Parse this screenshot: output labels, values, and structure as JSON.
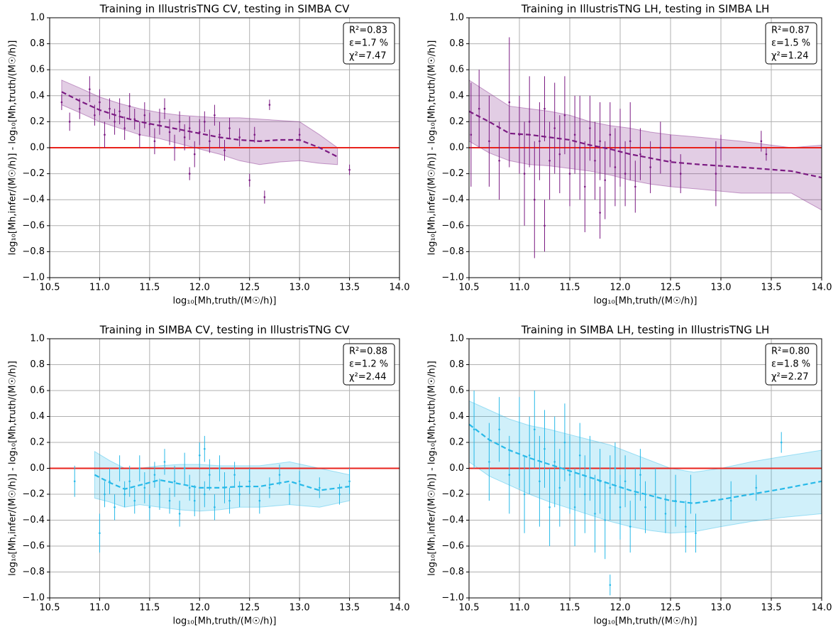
{
  "chart_data": [
    {
      "type": "errorbar",
      "title": "Training in IllustrisTNG CV, testing in SIMBA CV",
      "xlabel": "log₁₀[Mh,truth/(M☉/h)]",
      "ylabel": "log₁₀[Mh,infer/(M☉/h)] - log₁₀[Mh,truth/(M☉/h)]",
      "annotations": [
        "R²=0.83",
        "ε=1.7 %",
        "χ²=7.47"
      ],
      "color": "#7b1a82",
      "grid": true,
      "reference_line": 0,
      "reference_color": "#e8221c",
      "xlim": [
        10.5,
        14.0
      ],
      "ylim": [
        -1.0,
        1.0
      ],
      "xticks": [
        10.5,
        {
          "value": 11,
          "label": "11.0"
        },
        11.5,
        {
          "value": 12,
          "label": "12.0"
        },
        12.5,
        {
          "value": 13,
          "label": "13.0"
        },
        13.5,
        {
          "value": 14,
          "label": "14.0"
        }
      ],
      "yticks": [
        {
          "value": -1,
          "label": "−1.0"
        },
        {
          "value": -0.8,
          "label": "−0.8"
        },
        {
          "value": -0.6,
          "label": "−0.6"
        },
        {
          "value": -0.4,
          "label": "−0.4"
        },
        {
          "value": -0.2,
          "label": "−0.2"
        },
        {
          "value": 0,
          "label": "0.0"
        },
        0.2,
        0.4,
        0.6,
        0.8,
        {
          "value": 1,
          "label": "1.0"
        }
      ],
      "points": {
        "x": [
          10.62,
          10.7,
          10.8,
          10.9,
          10.95,
          11.0,
          11.05,
          11.1,
          11.15,
          11.2,
          11.25,
          11.3,
          11.35,
          11.4,
          11.45,
          11.5,
          11.55,
          11.6,
          11.65,
          11.7,
          11.75,
          11.8,
          11.85,
          11.9,
          11.95,
          12.0,
          12.05,
          12.1,
          12.15,
          12.2,
          12.25,
          12.3,
          12.4,
          12.5,
          12.55,
          12.65,
          12.7,
          13.0,
          13.5,
          11.9
        ],
        "y": [
          0.35,
          0.2,
          0.3,
          0.45,
          0.25,
          0.35,
          0.1,
          0.3,
          0.2,
          0.28,
          0.15,
          0.32,
          0.22,
          0.1,
          0.25,
          0.18,
          0.05,
          0.2,
          0.3,
          0.12,
          0.0,
          0.2,
          0.08,
          0.15,
          -0.05,
          0.12,
          0.2,
          0.05,
          0.25,
          0.1,
          -0.02,
          0.15,
          0.08,
          -0.25,
          0.1,
          -0.38,
          0.33,
          0.1,
          -0.17,
          -0.2
        ],
        "err": [
          0.06,
          0.07,
          0.08,
          0.1,
          0.08,
          0.1,
          0.1,
          0.08,
          0.1,
          0.1,
          0.09,
          0.1,
          0.08,
          0.1,
          0.1,
          0.09,
          0.1,
          0.1,
          0.08,
          0.1,
          0.1,
          0.08,
          0.1,
          0.09,
          0.1,
          0.1,
          0.08,
          0.09,
          0.08,
          0.1,
          0.08,
          0.08,
          0.07,
          0.05,
          0.06,
          0.05,
          0.04,
          0.05,
          0.04,
          0.05
        ]
      },
      "mean": {
        "x": [
          10.62,
          10.8,
          11.0,
          11.2,
          11.4,
          11.6,
          11.8,
          12.0,
          12.2,
          12.4,
          12.6,
          12.8,
          13.0,
          13.2,
          13.38
        ],
        "values": [
          0.43,
          0.36,
          0.29,
          0.24,
          0.2,
          0.17,
          0.14,
          0.11,
          0.08,
          0.06,
          0.05,
          0.06,
          0.06,
          0.0,
          -0.07
        ],
        "lower": [
          0.33,
          0.27,
          0.2,
          0.15,
          0.1,
          0.07,
          0.03,
          -0.01,
          -0.05,
          -0.1,
          -0.13,
          -0.11,
          -0.1,
          -0.12,
          -0.13
        ],
        "upper": [
          0.52,
          0.46,
          0.39,
          0.34,
          0.3,
          0.27,
          0.25,
          0.24,
          0.23,
          0.23,
          0.22,
          0.21,
          0.2,
          0.1,
          0.0
        ]
      }
    },
    {
      "type": "errorbar",
      "title": "Training in IllustrisTNG LH, testing in SIMBA LH",
      "xlabel": "log₁₀[Mh,truth/(M☉/h)]",
      "ylabel": "log₁₀[Mh,infer/(M☉/h)] - log₁₀[Mh,truth/(M☉/h)]",
      "annotations": [
        "R²=0.87",
        "ε=1.5 %",
        "χ²=1.24"
      ],
      "color": "#7b1a82",
      "grid": true,
      "reference_line": 0,
      "reference_color": "#e8221c",
      "xlim": [
        10.5,
        14.0
      ],
      "ylim": [
        -1.0,
        1.0
      ],
      "xticks": [
        10.5,
        {
          "value": 11,
          "label": "11.0"
        },
        11.5,
        {
          "value": 12,
          "label": "12.0"
        },
        12.5,
        {
          "value": 13,
          "label": "13.0"
        },
        13.5,
        {
          "value": 14,
          "label": "14.0"
        }
      ],
      "yticks": [
        {
          "value": -1,
          "label": "−1.0"
        },
        {
          "value": -0.8,
          "label": "−0.8"
        },
        {
          "value": -0.6,
          "label": "−0.6"
        },
        {
          "value": -0.4,
          "label": "−0.4"
        },
        {
          "value": -0.2,
          "label": "−0.2"
        },
        {
          "value": 0,
          "label": "0.0"
        },
        0.2,
        0.4,
        0.6,
        0.8,
        {
          "value": 1,
          "label": "1.0"
        }
      ],
      "points": {
        "x": [
          10.52,
          10.6,
          10.7,
          10.8,
          10.9,
          11.0,
          11.05,
          11.1,
          11.15,
          11.2,
          11.25,
          11.3,
          11.35,
          11.4,
          11.45,
          11.5,
          11.55,
          11.6,
          11.65,
          11.7,
          11.75,
          11.8,
          11.85,
          11.9,
          11.95,
          12.0,
          12.05,
          12.1,
          12.15,
          12.2,
          12.3,
          12.4,
          12.5,
          12.6,
          12.95,
          13.0,
          13.4,
          13.45,
          11.8,
          11.25
        ],
        "y": [
          0.1,
          0.3,
          0.05,
          -0.1,
          0.35,
          0.1,
          -0.2,
          0.2,
          -0.4,
          0.05,
          0.3,
          -0.1,
          0.15,
          -0.05,
          0.25,
          -0.2,
          0.1,
          0.0,
          -0.3,
          0.15,
          -0.1,
          0.05,
          -0.25,
          0.1,
          -0.15,
          0.0,
          -0.2,
          0.05,
          -0.3,
          -0.05,
          -0.15,
          0.0,
          -0.1,
          -0.2,
          -0.2,
          0.0,
          0.05,
          -0.05,
          -0.5,
          -0.6
        ],
        "err": [
          0.4,
          0.3,
          0.35,
          0.3,
          0.5,
          0.3,
          0.4,
          0.35,
          0.45,
          0.3,
          0.25,
          0.3,
          0.35,
          0.3,
          0.3,
          0.25,
          0.3,
          0.4,
          0.35,
          0.25,
          0.3,
          0.3,
          0.3,
          0.25,
          0.3,
          0.3,
          0.25,
          0.3,
          0.2,
          0.2,
          0.2,
          0.2,
          0.2,
          0.15,
          0.25,
          0.1,
          0.08,
          0.05,
          0.2,
          0.2
        ]
      },
      "mean": {
        "x": [
          10.5,
          10.7,
          10.9,
          11.1,
          11.3,
          11.5,
          11.7,
          11.9,
          12.1,
          12.3,
          12.5,
          12.8,
          13.2,
          13.7,
          14.0
        ],
        "values": [
          0.28,
          0.2,
          0.11,
          0.1,
          0.08,
          0.06,
          0.02,
          -0.01,
          -0.05,
          -0.08,
          -0.11,
          -0.13,
          -0.15,
          -0.18,
          -0.23
        ],
        "lower": [
          0.05,
          -0.04,
          -0.1,
          -0.13,
          -0.14,
          -0.16,
          -0.18,
          -0.21,
          -0.25,
          -0.28,
          -0.3,
          -0.32,
          -0.35,
          -0.35,
          -0.48
        ],
        "upper": [
          0.52,
          0.42,
          0.32,
          0.3,
          0.28,
          0.25,
          0.2,
          0.17,
          0.15,
          0.12,
          0.1,
          0.08,
          0.05,
          0.0,
          0.02
        ]
      }
    },
    {
      "type": "errorbar",
      "title": "Training in SIMBA CV, testing in IllustrisTNG CV",
      "xlabel": "log₁₀[Mh,truth/(M☉/h)]",
      "ylabel": "log₁₀[Mh,infer/(M☉/h)] - log₁₀[Mh,truth/(M☉/h)]",
      "annotations": [
        "R²=0.88",
        "ε=1.2 %",
        "χ²=2.44"
      ],
      "color": "#27b9e8",
      "grid": true,
      "reference_line": 0,
      "reference_color": "#e8221c",
      "xlim": [
        10.5,
        14.0
      ],
      "ylim": [
        -1.0,
        1.0
      ],
      "xticks": [
        10.5,
        {
          "value": 11,
          "label": "11.0"
        },
        11.5,
        {
          "value": 12,
          "label": "12.0"
        },
        12.5,
        {
          "value": 13,
          "label": "13.0"
        },
        13.5,
        {
          "value": 14,
          "label": "14.0"
        }
      ],
      "yticks": [
        {
          "value": -1,
          "label": "−1.0"
        },
        {
          "value": -0.8,
          "label": "−0.8"
        },
        {
          "value": -0.6,
          "label": "−0.6"
        },
        {
          "value": -0.4,
          "label": "−0.4"
        },
        {
          "value": -0.2,
          "label": "−0.2"
        },
        {
          "value": 0,
          "label": "0.0"
        },
        0.2,
        0.4,
        0.6,
        0.8,
        {
          "value": 1,
          "label": "1.0"
        }
      ],
      "points": {
        "x": [
          10.75,
          11.0,
          11.05,
          11.1,
          11.15,
          11.2,
          11.25,
          11.3,
          11.35,
          11.4,
          11.45,
          11.5,
          11.55,
          11.6,
          11.65,
          11.7,
          11.75,
          11.8,
          11.85,
          11.9,
          11.95,
          12.0,
          12.05,
          12.1,
          12.15,
          12.2,
          12.25,
          12.3,
          12.35,
          12.4,
          12.5,
          12.6,
          12.7,
          12.8,
          12.9,
          13.0,
          13.2,
          13.4,
          13.5,
          12.05
        ],
        "y": [
          -0.1,
          -0.5,
          -0.2,
          -0.1,
          -0.3,
          0.0,
          -0.2,
          -0.1,
          -0.25,
          0.0,
          -0.15,
          -0.3,
          -0.05,
          -0.2,
          0.05,
          -0.25,
          -0.1,
          -0.35,
          0.0,
          -0.15,
          -0.25,
          0.1,
          -0.2,
          -0.05,
          -0.3,
          0.0,
          -0.15,
          -0.25,
          -0.05,
          -0.2,
          -0.1,
          -0.25,
          -0.15,
          -0.05,
          -0.2,
          -0.1,
          -0.15,
          -0.2,
          -0.1,
          0.15
        ],
        "err": [
          0.12,
          0.15,
          0.1,
          0.1,
          0.1,
          0.1,
          0.1,
          0.12,
          0.1,
          0.1,
          0.12,
          0.1,
          0.1,
          0.12,
          0.1,
          0.1,
          0.12,
          0.1,
          0.12,
          0.1,
          0.12,
          0.1,
          0.1,
          0.12,
          0.1,
          0.1,
          0.12,
          0.1,
          0.1,
          0.1,
          0.1,
          0.1,
          0.08,
          0.08,
          0.08,
          0.08,
          0.08,
          0.08,
          0.1,
          0.1
        ]
      },
      "mean": {
        "x": [
          10.95,
          11.1,
          11.25,
          11.4,
          11.6,
          11.8,
          12.0,
          12.2,
          12.4,
          12.6,
          12.9,
          13.2,
          13.5
        ],
        "values": [
          -0.05,
          -0.11,
          -0.16,
          -0.13,
          -0.09,
          -0.12,
          -0.15,
          -0.15,
          -0.14,
          -0.14,
          -0.1,
          -0.17,
          -0.14
        ],
        "lower": [
          -0.23,
          -0.26,
          -0.3,
          -0.28,
          -0.3,
          -0.32,
          -0.33,
          -0.32,
          -0.3,
          -0.3,
          -0.28,
          -0.3,
          -0.25
        ],
        "upper": [
          0.13,
          0.06,
          0.0,
          0.0,
          0.02,
          0.03,
          0.03,
          0.02,
          0.02,
          0.02,
          0.05,
          0.0,
          -0.05
        ]
      }
    },
    {
      "type": "errorbar",
      "title": "Training in SIMBA LH, testing in IllustrisTNG LH",
      "xlabel": "log₁₀[Mh,truth/(M☉/h)]",
      "ylabel": "log₁₀[Mh,infer/(M☉/h)] - log₁₀[Mh,truth/(M☉/h)]",
      "annotations": [
        "R²=0.80",
        "ε=1.8 %",
        "χ²=2.27"
      ],
      "color": "#27b9e8",
      "grid": true,
      "reference_line": 0,
      "reference_color": "#e8221c",
      "xlim": [
        10.5,
        14.0
      ],
      "ylim": [
        -1.0,
        1.0
      ],
      "xticks": [
        10.5,
        {
          "value": 11,
          "label": "11.0"
        },
        11.5,
        {
          "value": 12,
          "label": "12.0"
        },
        12.5,
        {
          "value": 13,
          "label": "13.0"
        },
        13.5,
        {
          "value": 14,
          "label": "14.0"
        }
      ],
      "yticks": [
        {
          "value": -1,
          "label": "−1.0"
        },
        {
          "value": -0.8,
          "label": "−0.8"
        },
        {
          "value": -0.6,
          "label": "−0.6"
        },
        {
          "value": -0.4,
          "label": "−0.4"
        },
        {
          "value": -0.2,
          "label": "−0.2"
        },
        {
          "value": 0,
          "label": "0.0"
        },
        0.2,
        0.4,
        0.6,
        0.8,
        {
          "value": 1,
          "label": "1.0"
        }
      ],
      "points": {
        "x": [
          10.55,
          10.7,
          10.8,
          10.9,
          11.0,
          11.05,
          11.1,
          11.15,
          11.2,
          11.25,
          11.3,
          11.35,
          11.4,
          11.45,
          11.5,
          11.55,
          11.6,
          11.65,
          11.7,
          11.75,
          11.8,
          11.85,
          11.9,
          11.95,
          12.0,
          12.05,
          12.1,
          12.15,
          12.2,
          12.25,
          12.35,
          12.45,
          12.55,
          12.65,
          12.7,
          12.75,
          13.1,
          13.35,
          13.6,
          11.9
        ],
        "y": [
          0.3,
          0.05,
          0.3,
          -0.05,
          0.2,
          -0.2,
          0.1,
          0.3,
          -0.1,
          0.15,
          -0.3,
          0.05,
          -0.15,
          0.2,
          -0.05,
          -0.3,
          0.1,
          -0.2,
          0.0,
          -0.35,
          -0.1,
          -0.4,
          -0.15,
          0.0,
          -0.3,
          -0.1,
          -0.45,
          -0.2,
          -0.05,
          -0.3,
          -0.2,
          -0.35,
          -0.25,
          -0.45,
          -0.2,
          -0.5,
          -0.25,
          -0.15,
          0.2,
          -0.9
        ],
        "err": [
          0.3,
          0.3,
          0.25,
          0.3,
          0.35,
          0.3,
          0.3,
          0.3,
          0.35,
          0.3,
          0.3,
          0.35,
          0.3,
          0.3,
          0.3,
          0.3,
          0.25,
          0.3,
          0.25,
          0.3,
          0.25,
          0.3,
          0.25,
          0.2,
          0.25,
          0.2,
          0.2,
          0.2,
          0.2,
          0.2,
          0.2,
          0.15,
          0.2,
          0.2,
          0.15,
          0.15,
          0.15,
          0.1,
          0.08,
          0.08
        ]
      },
      "mean": {
        "x": [
          10.5,
          10.7,
          10.9,
          11.1,
          11.3,
          11.5,
          11.7,
          11.9,
          12.1,
          12.3,
          12.5,
          12.73,
          13.0,
          13.3,
          13.6,
          14.0
        ],
        "values": [
          0.34,
          0.22,
          0.14,
          0.08,
          0.03,
          -0.02,
          -0.07,
          -0.12,
          -0.17,
          -0.21,
          -0.25,
          -0.27,
          -0.24,
          -0.2,
          -0.16,
          -0.1
        ],
        "lower": [
          0.05,
          -0.06,
          -0.13,
          -0.2,
          -0.26,
          -0.31,
          -0.36,
          -0.41,
          -0.45,
          -0.48,
          -0.5,
          -0.49,
          -0.45,
          -0.41,
          -0.38,
          -0.35
        ],
        "upper": [
          0.52,
          0.45,
          0.38,
          0.33,
          0.3,
          0.26,
          0.22,
          0.18,
          0.12,
          0.06,
          0.0,
          -0.03,
          0.0,
          0.05,
          0.09,
          0.14
        ]
      }
    }
  ]
}
